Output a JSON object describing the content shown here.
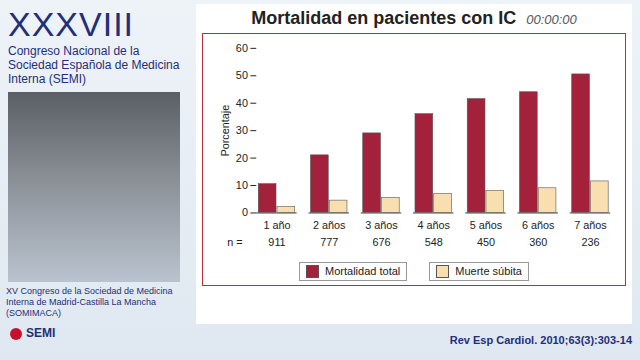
{
  "chart_data": {
    "type": "bar",
    "title": "Mortalidad en pacientes con IC",
    "categories": [
      "1 año",
      "2 años",
      "3 años",
      "4 años",
      "5 años",
      "6 años",
      "7 años"
    ],
    "series": [
      {
        "name": "Mortalidad total",
        "color": "#a3213a",
        "values": [
          10.5,
          21,
          29,
          36,
          41.5,
          44,
          50.5
        ]
      },
      {
        "name": "Muerte súbita",
        "color": "#f9dfb0",
        "values": [
          2.2,
          4.5,
          5.5,
          7,
          8,
          9,
          11.5
        ]
      }
    ],
    "ylabel": "Porcentaje",
    "ylim": [
      0,
      60
    ],
    "yticks": [
      0,
      10,
      20,
      30,
      40,
      50,
      60
    ],
    "grid": false,
    "legend": "bottom",
    "n_label": "n =",
    "n": [
      911,
      777,
      676,
      548,
      450,
      360,
      236
    ],
    "source": "Rev Esp Cardiol. 2010;63(3):303-14"
  },
  "slide": {
    "header": {
      "title": "XXXVIII",
      "subtitle": "Congreso Nacional de la Sociedad Española de Medicina Interna (SEMI)"
    },
    "timer": "00:00:00",
    "footer": "XV Congreso de la Sociedad de Medicina Interna de Madrid-Castilla La Mancha (SOMIMACA)",
    "logo": "SEMI"
  }
}
